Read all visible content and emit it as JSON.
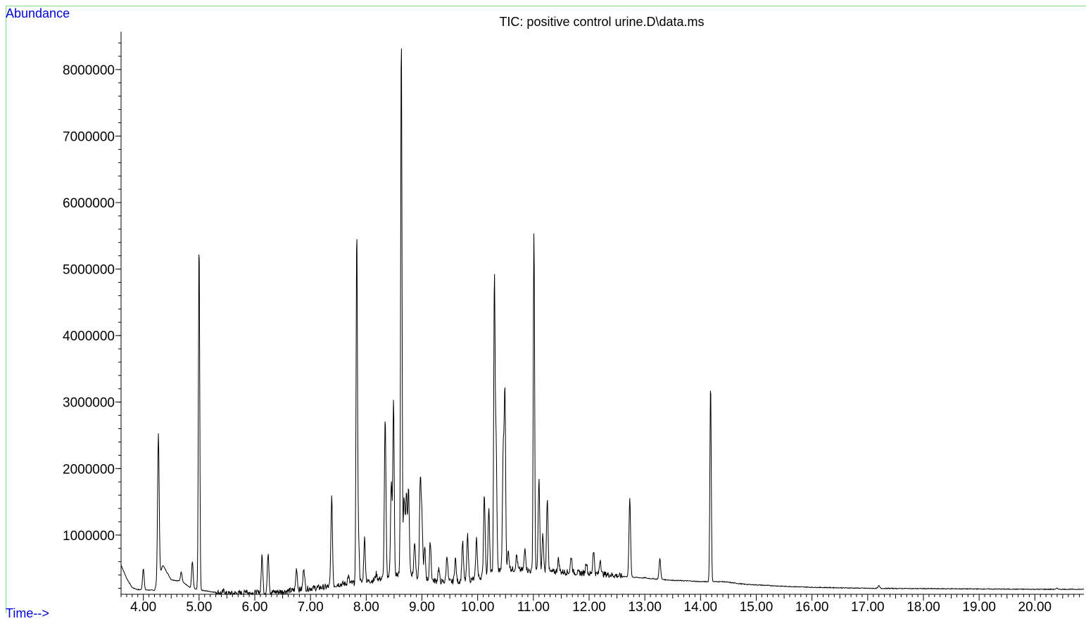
{
  "chart_data": {
    "type": "line",
    "title": "TIC: positive control urine.D\\data.ms",
    "ylabel": "Abundance",
    "xlabel": "Time-->",
    "xlim": [
      3.6,
      20.88
    ],
    "ylim": [
      110000,
      8570000
    ],
    "x_ticks": [
      4,
      5,
      6,
      7,
      8,
      9,
      10,
      11,
      12,
      13,
      14,
      15,
      16,
      17,
      18,
      19,
      20
    ],
    "x_tick_labels": [
      "4.00",
      "5.00",
      "6.00",
      "7.00",
      "8.00",
      "9.00",
      "10.00",
      "11.00",
      "12.00",
      "13.00",
      "14.00",
      "15.00",
      "16.00",
      "17.00",
      "18.00",
      "19.00",
      "20.00"
    ],
    "y_ticks": [
      1000000,
      2000000,
      3000000,
      4000000,
      5000000,
      6000000,
      7000000,
      8000000
    ],
    "y_tick_labels": [
      "1000000",
      "2000000",
      "3000000",
      "4000000",
      "5000000",
      "6000000",
      "7000000",
      "8000000"
    ],
    "grid": false,
    "line_color": "#000000",
    "series": [
      {
        "baseline": [
          [
            3.6,
            550000
          ],
          [
            3.7,
            350000
          ],
          [
            3.8,
            210000
          ],
          [
            3.9,
            180000
          ],
          [
            4.2,
            170000
          ],
          [
            4.35,
            550000
          ],
          [
            4.5,
            330000
          ],
          [
            4.7,
            300000
          ],
          [
            4.85,
            200000
          ],
          [
            5.2,
            150000
          ],
          [
            5.5,
            120000
          ],
          [
            6.0,
            130000
          ],
          [
            6.5,
            150000
          ],
          [
            7.0,
            200000
          ],
          [
            7.3,
            220000
          ],
          [
            7.5,
            260000
          ],
          [
            7.8,
            280000
          ],
          [
            8.0,
            300000
          ],
          [
            8.3,
            350000
          ],
          [
            8.5,
            400000
          ],
          [
            8.8,
            420000
          ],
          [
            9.0,
            350000
          ],
          [
            9.3,
            300000
          ],
          [
            9.6,
            300000
          ],
          [
            9.9,
            330000
          ],
          [
            10.1,
            380000
          ],
          [
            10.3,
            450000
          ],
          [
            10.5,
            500000
          ],
          [
            10.7,
            480000
          ],
          [
            10.9,
            470000
          ],
          [
            11.1,
            430000
          ],
          [
            11.4,
            450000
          ],
          [
            11.7,
            440000
          ],
          [
            12.0,
            420000
          ],
          [
            12.3,
            410000
          ],
          [
            12.6,
            380000
          ],
          [
            12.9,
            360000
          ],
          [
            13.2,
            340000
          ],
          [
            13.5,
            320000
          ],
          [
            13.8,
            310000
          ],
          [
            14.0,
            300000
          ],
          [
            14.4,
            300000
          ],
          [
            14.8,
            260000
          ],
          [
            15.5,
            230000
          ],
          [
            16.0,
            215000
          ],
          [
            17.0,
            200000
          ],
          [
            18.0,
            195000
          ],
          [
            19.0,
            190000
          ],
          [
            20.0,
            185000
          ],
          [
            20.88,
            185000
          ]
        ],
        "peaks": [
          [
            4.0,
            500000
          ],
          [
            4.27,
            2530000
          ],
          [
            4.68,
            450000
          ],
          [
            4.88,
            600000
          ],
          [
            5.0,
            5400000
          ],
          [
            5.45,
            170000
          ],
          [
            5.85,
            180000
          ],
          [
            6.13,
            680000
          ],
          [
            6.24,
            740000
          ],
          [
            6.75,
            500000
          ],
          [
            6.88,
            520000
          ],
          [
            7.38,
            1570000
          ],
          [
            7.68,
            380000
          ],
          [
            7.83,
            5530000
          ],
          [
            7.86,
            1020000
          ],
          [
            7.97,
            950000
          ],
          [
            8.18,
            420000
          ],
          [
            8.34,
            2730000
          ],
          [
            8.45,
            1800000
          ],
          [
            8.49,
            3050000
          ],
          [
            8.63,
            8560000
          ],
          [
            8.68,
            1560000
          ],
          [
            8.72,
            1640000
          ],
          [
            8.76,
            1670000
          ],
          [
            8.87,
            900000
          ],
          [
            8.97,
            1800000
          ],
          [
            9.0,
            1200000
          ],
          [
            9.05,
            800000
          ],
          [
            9.15,
            900000
          ],
          [
            9.3,
            500000
          ],
          [
            9.45,
            700000
          ],
          [
            9.6,
            650000
          ],
          [
            9.73,
            900000
          ],
          [
            9.82,
            1000000
          ],
          [
            9.98,
            950000
          ],
          [
            10.12,
            1620000
          ],
          [
            10.2,
            1390000
          ],
          [
            10.3,
            4790000
          ],
          [
            10.33,
            2380000
          ],
          [
            10.46,
            2330000
          ],
          [
            10.49,
            3080000
          ],
          [
            10.55,
            750000
          ],
          [
            10.7,
            700000
          ],
          [
            10.85,
            800000
          ],
          [
            11.01,
            5590000
          ],
          [
            11.1,
            1840000
          ],
          [
            11.17,
            1000000
          ],
          [
            11.25,
            1550000
          ],
          [
            11.45,
            640000
          ],
          [
            11.68,
            680000
          ],
          [
            11.95,
            600000
          ],
          [
            12.08,
            780000
          ],
          [
            12.2,
            640000
          ],
          [
            12.73,
            1550000
          ],
          [
            13.0,
            360000
          ],
          [
            13.27,
            650000
          ],
          [
            14.18,
            3280000
          ],
          [
            17.2,
            240000
          ],
          [
            20.4,
            200000
          ]
        ]
      }
    ]
  }
}
